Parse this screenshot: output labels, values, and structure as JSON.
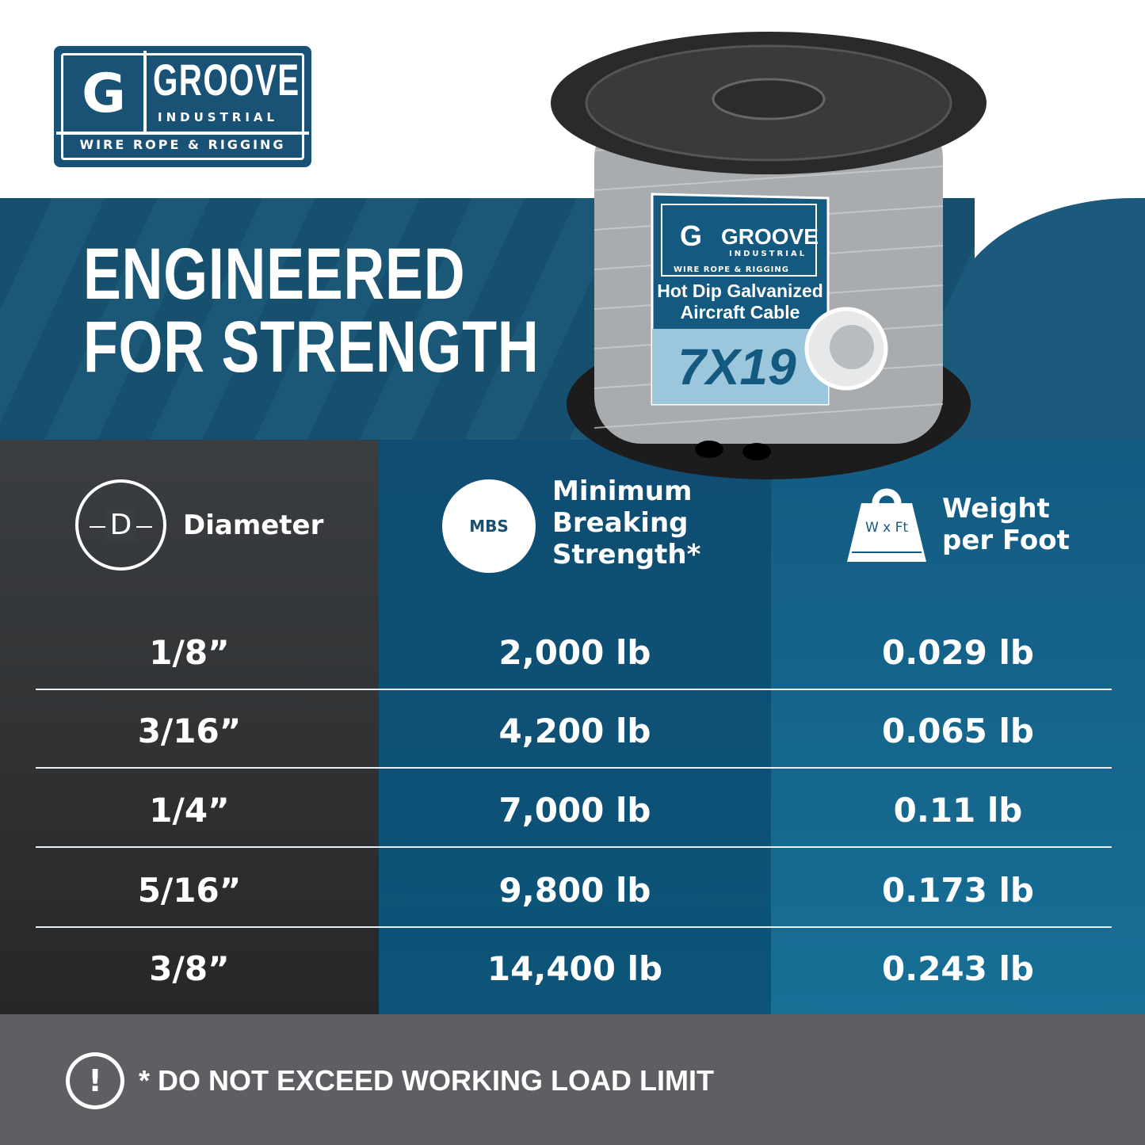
{
  "logo": {
    "letter": "G",
    "brand": "GROOVE",
    "sub": "INDUSTRIAL",
    "tag": "WIRE ROPE & RIGGING"
  },
  "headline": {
    "line1": "ENGINEERED",
    "line2": "FOR STRENGTH"
  },
  "product_label": {
    "brand": "GROOVE",
    "sub": "INDUSTRIAL",
    "tag": "WIRE ROPE & RIGGING",
    "line1": "Hot Dip Galvanized",
    "line2": "Aircraft Cable",
    "construction": "7X19"
  },
  "table": {
    "headers": [
      {
        "icon": "diameter-icon",
        "icon_text": "D",
        "label": "Diameter"
      },
      {
        "icon": "mbs-icon",
        "icon_text": "MBS",
        "label_lines": [
          "Minimum",
          "Breaking",
          "Strength*"
        ]
      },
      {
        "icon": "weight-icon",
        "icon_text": "W x Ft",
        "label_lines": [
          "Weight",
          "per Foot"
        ]
      }
    ],
    "rows": [
      {
        "diameter": "1/8”",
        "mbs": "2,000 lb",
        "weight": "0.029 lb"
      },
      {
        "diameter": "3/16”",
        "mbs": "4,200 lb",
        "weight": "0.065 lb"
      },
      {
        "diameter": "1/4”",
        "mbs": "7,000 lb",
        "weight": "0.11 lb"
      },
      {
        "diameter": "5/16”",
        "mbs": "9,800 lb",
        "weight": "0.173 lb"
      },
      {
        "diameter": "3/8”",
        "mbs": "14,400 lb",
        "weight": "0.243 lb"
      }
    ]
  },
  "footer": {
    "icon": "warning-speech-icon",
    "icon_text": "!",
    "text": "* DO NOT EXCEED WORKING LOAD LIMIT"
  },
  "colors": {
    "brand_blue": "#1a5276",
    "header_dark": "#3b3e41",
    "mbs_blue": "#0f4d72",
    "weight_blue": "#135b82",
    "footer_gray": "#5d5f63"
  }
}
